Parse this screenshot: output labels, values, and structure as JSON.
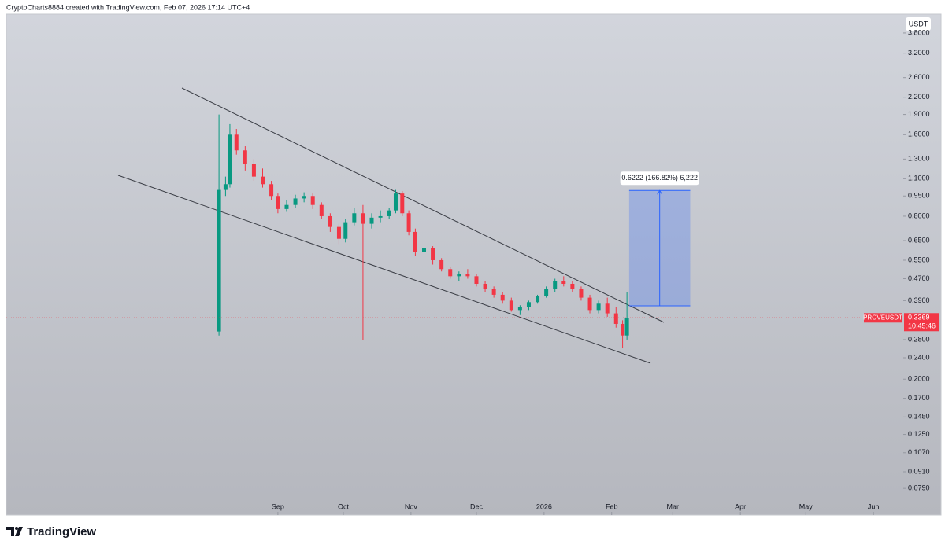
{
  "header": {
    "credit": "CryptoCharts8884 created with TradingView.com, Feb 07, 2026 17:14 UTC+4"
  },
  "chart_data": {
    "type": "candlestick",
    "currency": "USDT",
    "symbol": "PROVEUSDT",
    "countdown": "10:45:46",
    "last_price": 0.3369,
    "log_scale": true,
    "up_color": "#089981",
    "down_color": "#f23645",
    "ylim": [
      0.063,
      4.46
    ],
    "yticks": [
      {
        "value": 3.8,
        "label": "3.8000"
      },
      {
        "value": 3.2,
        "label": "3.2000"
      },
      {
        "value": 2.6,
        "label": "2.6000"
      },
      {
        "value": 2.2,
        "label": "2.2000"
      },
      {
        "value": 1.9,
        "label": "1.9000"
      },
      {
        "value": 1.6,
        "label": "1.6000"
      },
      {
        "value": 1.3,
        "label": "1.3000"
      },
      {
        "value": 1.1,
        "label": "1.1000"
      },
      {
        "value": 0.95,
        "label": "0.9500"
      },
      {
        "value": 0.8,
        "label": "0.8000"
      },
      {
        "value": 0.65,
        "label": "0.6500"
      },
      {
        "value": 0.55,
        "label": "0.5500"
      },
      {
        "value": 0.47,
        "label": "0.4700"
      },
      {
        "value": 0.39,
        "label": "0.3900"
      },
      {
        "value": 0.28,
        "label": "0.2800"
      },
      {
        "value": 0.24,
        "label": "0.2400"
      },
      {
        "value": 0.2,
        "label": "0.2000"
      },
      {
        "value": 0.17,
        "label": "0.1700"
      },
      {
        "value": 0.145,
        "label": "0.1450"
      },
      {
        "value": 0.125,
        "label": "0.1250"
      },
      {
        "value": 0.107,
        "label": "0.1070"
      },
      {
        "value": 0.091,
        "label": "0.0910"
      },
      {
        "value": 0.079,
        "label": "0.0790"
      }
    ],
    "xlim": [
      -97.5,
      313.3
    ],
    "xticks": [
      {
        "value": 27,
        "label": "Sep"
      },
      {
        "value": 57,
        "label": "Oct"
      },
      {
        "value": 88,
        "label": "Nov"
      },
      {
        "value": 118,
        "label": "Dec"
      },
      {
        "value": 149,
        "label": "2026"
      },
      {
        "value": 180,
        "label": "Feb"
      },
      {
        "value": 208,
        "label": "Mar"
      },
      {
        "value": 239,
        "label": "Apr"
      },
      {
        "value": 269,
        "label": "May"
      },
      {
        "value": 300,
        "label": "Jun"
      }
    ],
    "candles": {
      "x": [
        0,
        3,
        5,
        8,
        12,
        16,
        20,
        24,
        27,
        31,
        35,
        39,
        43,
        47,
        51,
        55,
        58,
        62,
        66,
        70,
        74,
        78,
        81,
        84,
        87,
        90,
        94,
        98,
        102,
        106,
        110,
        114,
        118,
        122,
        126,
        130,
        134,
        138,
        142,
        146,
        150,
        154,
        158,
        162,
        166,
        170,
        174,
        178,
        182,
        185,
        187
      ],
      "open": [
        0.3,
        1.0,
        1.05,
        1.6,
        1.4,
        1.25,
        1.12,
        1.05,
        0.95,
        0.85,
        0.88,
        0.93,
        0.95,
        0.88,
        0.8,
        0.73,
        0.66,
        0.76,
        0.82,
        0.75,
        0.79,
        0.8,
        0.84,
        0.97,
        0.82,
        0.7,
        0.59,
        0.61,
        0.55,
        0.51,
        0.48,
        0.49,
        0.48,
        0.45,
        0.43,
        0.41,
        0.39,
        0.36,
        0.37,
        0.385,
        0.405,
        0.43,
        0.46,
        0.45,
        0.43,
        0.4,
        0.36,
        0.38,
        0.35,
        0.32,
        0.29
      ],
      "high": [
        1.9,
        1.12,
        1.75,
        1.68,
        1.45,
        1.3,
        1.2,
        1.08,
        0.97,
        0.92,
        0.96,
        0.98,
        0.97,
        0.9,
        0.82,
        0.75,
        0.78,
        0.86,
        0.88,
        0.82,
        0.84,
        0.86,
        1.0,
        0.99,
        0.84,
        0.72,
        0.63,
        0.62,
        0.56,
        0.52,
        0.5,
        0.51,
        0.49,
        0.46,
        0.44,
        0.42,
        0.4,
        0.375,
        0.39,
        0.41,
        0.44,
        0.47,
        0.48,
        0.46,
        0.44,
        0.41,
        0.39,
        0.4,
        0.37,
        0.33,
        0.42
      ],
      "low": [
        0.29,
        0.95,
        1.02,
        1.35,
        1.18,
        1.08,
        1.02,
        0.92,
        0.82,
        0.83,
        0.86,
        0.9,
        0.85,
        0.78,
        0.7,
        0.63,
        0.64,
        0.74,
        0.28,
        0.72,
        0.76,
        0.78,
        0.82,
        0.8,
        0.68,
        0.57,
        0.57,
        0.53,
        0.5,
        0.47,
        0.46,
        0.47,
        0.44,
        0.42,
        0.4,
        0.38,
        0.355,
        0.345,
        0.36,
        0.38,
        0.4,
        0.42,
        0.44,
        0.42,
        0.39,
        0.35,
        0.35,
        0.34,
        0.31,
        0.26,
        0.28
      ],
      "close": [
        1.0,
        1.05,
        1.6,
        1.4,
        1.25,
        1.12,
        1.05,
        0.95,
        0.85,
        0.88,
        0.93,
        0.95,
        0.88,
        0.8,
        0.73,
        0.66,
        0.76,
        0.82,
        0.75,
        0.79,
        0.8,
        0.84,
        0.97,
        0.82,
        0.7,
        0.59,
        0.61,
        0.55,
        0.51,
        0.48,
        0.49,
        0.48,
        0.45,
        0.43,
        0.41,
        0.39,
        0.36,
        0.37,
        0.385,
        0.405,
        0.43,
        0.46,
        0.45,
        0.43,
        0.4,
        0.36,
        0.38,
        0.35,
        0.32,
        0.29,
        0.3369
      ]
    },
    "projection": {
      "from": 0.373,
      "to": 0.9952,
      "xrange": [
        188,
        216
      ],
      "label": "0.6222 (166.82%) 6,222",
      "color": "#2962ff"
    }
  },
  "footer": {
    "brand": "TradingView"
  }
}
